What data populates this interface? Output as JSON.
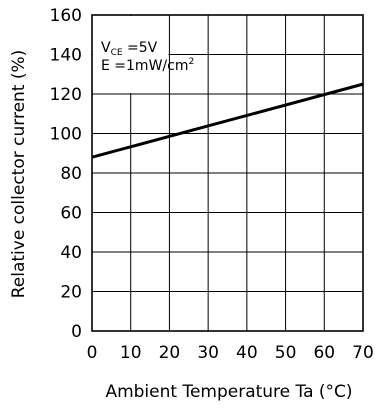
{
  "chart_data": {
    "type": "line",
    "xlabel": "Ambient Temperature Ta (°C)",
    "ylabel": "Relative collector current (%)",
    "xlim": [
      0,
      70
    ],
    "ylim": [
      0,
      160
    ],
    "x_ticks": [
      "0",
      "10",
      "20",
      "30",
      "40",
      "50",
      "60",
      "70"
    ],
    "y_ticks": [
      "0",
      "20",
      "40",
      "60",
      "80",
      "100",
      "120",
      "140",
      "160"
    ],
    "grid": true,
    "conditions": {
      "vce_symbol": "V",
      "vce_subscript": "CE",
      "vce_value": " =5V",
      "e_text": "E =1mW/cm",
      "e_superscript": "2"
    },
    "series": [
      {
        "x": [
          0,
          70
        ],
        "y": [
          88,
          125
        ]
      }
    ]
  }
}
